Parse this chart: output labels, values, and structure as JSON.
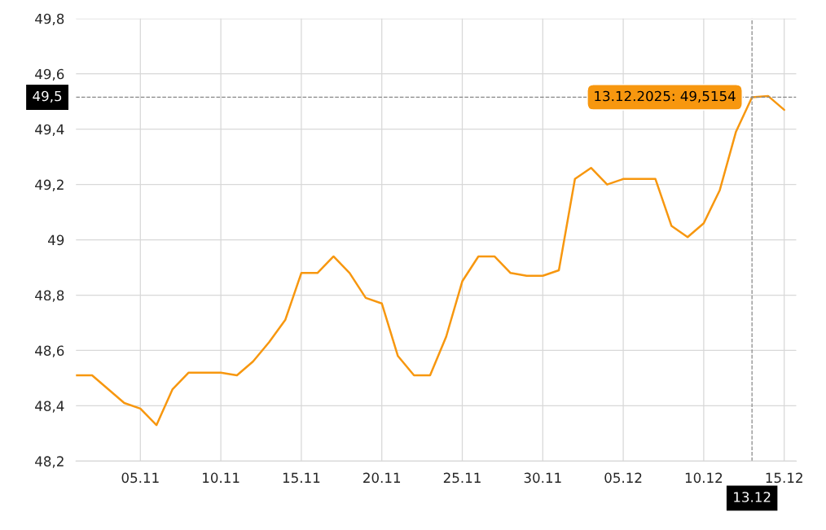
{
  "chart_data": {
    "type": "line",
    "x": [
      "2025-11-01",
      "2025-11-02",
      "2025-11-03",
      "2025-11-04",
      "2025-11-05",
      "2025-11-06",
      "2025-11-07",
      "2025-11-08",
      "2025-11-09",
      "2025-11-10",
      "2025-11-11",
      "2025-11-12",
      "2025-11-13",
      "2025-11-14",
      "2025-11-15",
      "2025-11-16",
      "2025-11-17",
      "2025-11-18",
      "2025-11-19",
      "2025-11-20",
      "2025-11-21",
      "2025-11-22",
      "2025-11-23",
      "2025-11-24",
      "2025-11-25",
      "2025-11-26",
      "2025-11-27",
      "2025-11-28",
      "2025-11-29",
      "2025-11-30",
      "2025-12-01",
      "2025-12-02",
      "2025-12-03",
      "2025-12-04",
      "2025-12-05",
      "2025-12-06",
      "2025-12-07",
      "2025-12-08",
      "2025-12-09",
      "2025-12-10",
      "2025-12-11",
      "2025-12-12",
      "2025-12-13",
      "2025-12-14",
      "2025-12-15"
    ],
    "series": [
      {
        "color": "#f7970f",
        "values": [
          48.51,
          48.51,
          48.46,
          48.41,
          48.39,
          48.33,
          48.46,
          48.52,
          48.52,
          48.52,
          48.51,
          48.56,
          48.63,
          48.71,
          48.88,
          48.88,
          48.94,
          48.88,
          48.79,
          48.77,
          48.58,
          48.51,
          48.51,
          48.65,
          48.85,
          48.94,
          48.94,
          48.88,
          48.87,
          48.87,
          48.89,
          49.22,
          49.26,
          49.2,
          49.22,
          49.22,
          49.22,
          49.05,
          49.01,
          49.06,
          49.18,
          49.39,
          49.5154,
          49.52,
          49.47
        ]
      }
    ],
    "xlim": [
      "2025-11-01",
      "2025-12-15T18:00"
    ],
    "xticks": [
      {
        "value": "2025-11-05",
        "label": "05.11"
      },
      {
        "value": "2025-11-10",
        "label": "10.11"
      },
      {
        "value": "2025-11-15",
        "label": "15.11"
      },
      {
        "value": "2025-11-20",
        "label": "20.11"
      },
      {
        "value": "2025-11-25",
        "label": "25.11"
      },
      {
        "value": "2025-11-30",
        "label": "30.11"
      },
      {
        "value": "2025-12-05",
        "label": "05.12"
      },
      {
        "value": "2025-12-10",
        "label": "10.12"
      },
      {
        "value": "2025-12-15",
        "label": "15.12"
      }
    ],
    "ylim": [
      48.2,
      49.8
    ],
    "yticks": [
      {
        "value": 48.2,
        "label": "48,2"
      },
      {
        "value": 48.4,
        "label": "48,4"
      },
      {
        "value": 48.6,
        "label": "48,6"
      },
      {
        "value": 48.8,
        "label": "48,8"
      },
      {
        "value": 49,
        "label": "49"
      },
      {
        "value": 49.2,
        "label": "49,2"
      },
      {
        "value": 49.4,
        "label": "49,4"
      },
      {
        "value": 49.6,
        "label": "49,6"
      },
      {
        "value": 49.8,
        "label": "49,8"
      }
    ],
    "grid": true,
    "marker": "none",
    "line_style": "solid",
    "ref_lines": [
      {
        "axis": "y",
        "value": 49.5154,
        "label": "49,5",
        "color": "#888888",
        "line_style": "dashed"
      },
      {
        "axis": "x",
        "value": "2025-12-13",
        "label": "13.12",
        "color": "#888888",
        "line_style": "dashed"
      }
    ],
    "annotations": [
      {
        "text": "13.12.2025: 49,5154",
        "x": "2025-12-13",
        "y": 49.5154
      }
    ]
  }
}
